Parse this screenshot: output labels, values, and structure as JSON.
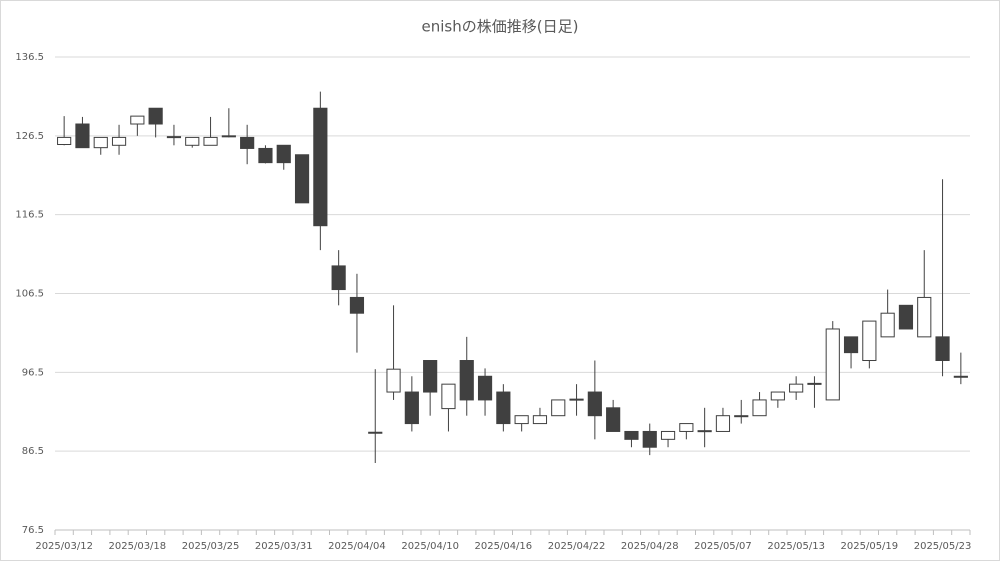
{
  "chart_data": {
    "type": "candlestick",
    "title": "enishの株価推移(日足)",
    "categories": [
      "2025/03/12",
      null,
      null,
      null,
      "2025/03/18",
      null,
      null,
      null,
      "2025/03/25",
      null,
      null,
      null,
      "2025/03/31",
      null,
      null,
      null,
      "2025/04/04",
      null,
      null,
      null,
      "2025/04/10",
      null,
      null,
      null,
      "2025/04/16",
      null,
      null,
      null,
      "2025/04/22",
      null,
      null,
      null,
      "2025/04/28",
      null,
      null,
      null,
      "2025/05/07",
      null,
      null,
      null,
      "2025/05/13",
      null,
      null,
      null,
      "2025/05/19",
      null,
      null,
      null,
      "2025/05/23",
      null
    ],
    "open": [
      125.4,
      128,
      125,
      125.3,
      128,
      130,
      126.4,
      125.3,
      125.3,
      126.5,
      126.3,
      124.9,
      125.3,
      124.1,
      130,
      110,
      106,
      88.9,
      94,
      94,
      98,
      91.9,
      98,
      96,
      94,
      90,
      90,
      91,
      93,
      94,
      92,
      89,
      89,
      88,
      89,
      89,
      89,
      90.9,
      91,
      93,
      94,
      95.1,
      93,
      101,
      98,
      101,
      105,
      101,
      101,
      96
    ],
    "high": [
      129,
      128.9,
      126.3,
      127.9,
      129,
      130,
      127.9,
      126.3,
      128.9,
      130,
      127.9,
      125.3,
      125.3,
      124.1,
      132.1,
      112,
      109,
      96.9,
      105,
      96,
      98,
      95,
      101,
      97,
      95,
      91,
      92,
      93,
      95,
      98,
      93,
      89,
      90,
      89,
      90,
      92,
      92,
      93,
      94,
      94,
      96,
      96,
      103,
      101,
      103,
      107,
      105,
      112,
      121,
      99
    ],
    "low": [
      125.3,
      125,
      124.1,
      124.1,
      126.5,
      126.3,
      125.3,
      125,
      125.3,
      126.3,
      122.9,
      123,
      122.2,
      118,
      112,
      105,
      99,
      85,
      93,
      89,
      91,
      89,
      91,
      91,
      89,
      89,
      90,
      91,
      91,
      88,
      89,
      87,
      86,
      87,
      88,
      87,
      89,
      90,
      91,
      92,
      93,
      92,
      93,
      97,
      97,
      101,
      102,
      101,
      96,
      95
    ],
    "close": [
      126.3,
      125,
      126.3,
      126.3,
      129,
      128,
      126.3,
      126.3,
      126.3,
      126.4,
      124.9,
      123.1,
      123.1,
      118,
      115.1,
      107,
      104,
      88.8,
      96.9,
      90,
      94,
      95,
      93,
      93,
      90,
      91,
      91,
      93,
      93.1,
      91,
      89,
      88,
      87,
      89,
      90,
      89.1,
      91,
      91,
      93,
      94,
      95,
      95,
      102,
      99,
      103,
      104,
      102,
      106,
      98,
      95.9
    ],
    "up_color": "#ffffff",
    "down_color": "#404040",
    "ylim": [
      76.5,
      136.5
    ],
    "yticks": [
      76.5,
      86.5,
      96.5,
      106.5,
      116.5,
      126.5,
      136.5
    ],
    "grid": true
  }
}
